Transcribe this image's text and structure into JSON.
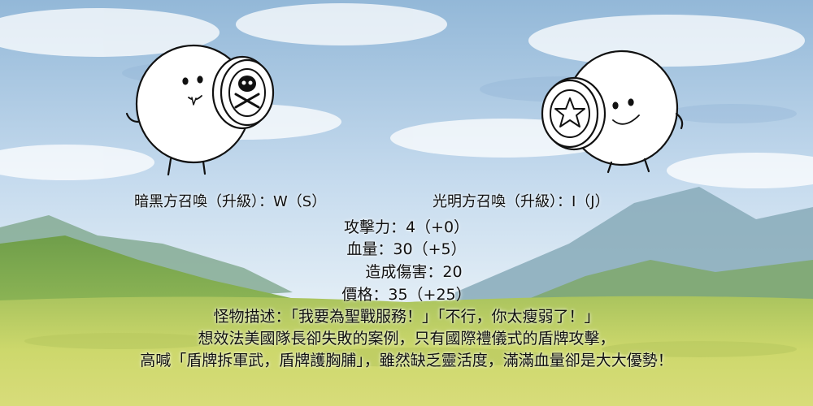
{
  "colors": {
    "sky_top": "#9bbfdc",
    "sky_mid": "#c9dcec",
    "mountain_far": "#7fa6b8",
    "hill_green": "#7fae52",
    "meadow": "#c9d66a",
    "outline": "#111111"
  },
  "characters": {
    "dark": {
      "icon": "skull-crossbones-shield-icon"
    },
    "light": {
      "icon": "star-shield-icon"
    }
  },
  "stats": {
    "dark_summon": "暗黑方召喚（升級）：W（S）",
    "light_summon": "光明方召喚（升級）：I（J）",
    "attack": "攻擊力：4（+0）",
    "hp": "血量：30（+5）",
    "damage": "造成傷害：20",
    "price": "價格：35（+25）"
  },
  "description": {
    "line1": "怪物描述：「我要為聖戰服務！」「不行，你太瘦弱了！」",
    "line2": "想效法美國隊長卻失敗的案例，只有國際禮儀式的盾牌攻擊，",
    "line3": "高喊「盾牌拆軍武，盾牌護胸脯」，雖然缺乏靈活度，滿滿血量卻是大大優勢！"
  }
}
